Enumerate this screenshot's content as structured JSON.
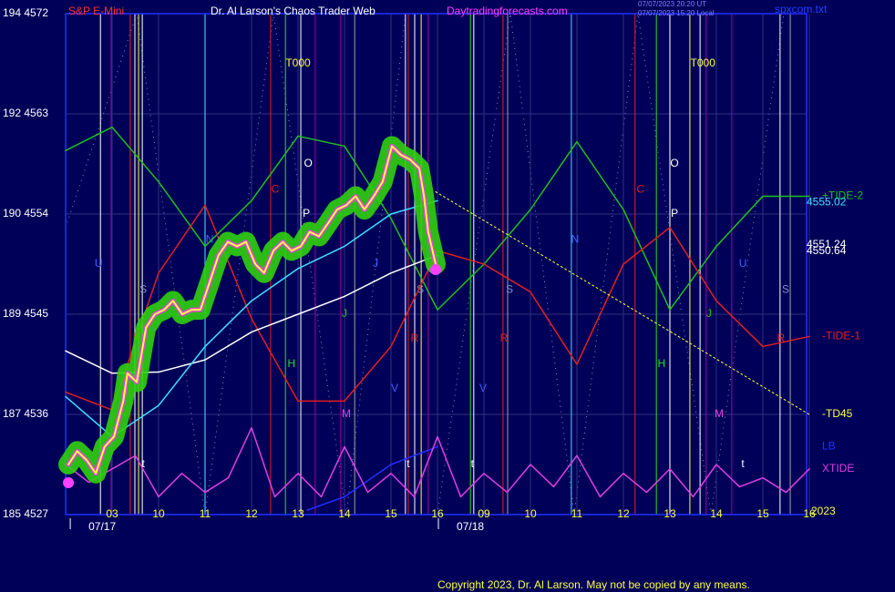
{
  "chart_data": {
    "type": "line",
    "symbol": "S&P E-Mini",
    "title": "Dr. Al Larson's Chaos Trader Web",
    "site": "Daytradingforecasts.com",
    "timestamps": [
      "07/07/2023 20:20 UT",
      "07/07/2023 15:20 Local"
    ],
    "file": "spxcom.txt",
    "copyright": "Copyright 2023, Dr. Al Larson. May not be copied by any means.",
    "year": "2023",
    "grid": true,
    "ylim": [
      4527,
      4572
    ],
    "yticks": [
      {
        "value": 4572,
        "label": "194 4572"
      },
      {
        "value": 4563,
        "label": "192 4563"
      },
      {
        "value": 4554,
        "label": "190 4554"
      },
      {
        "value": 4545,
        "label": "189 4545"
      },
      {
        "value": 4536,
        "label": "187 4536"
      },
      {
        "value": 4527,
        "label": "185 4527"
      }
    ],
    "xlim": [
      0,
      16
    ],
    "xticks": [
      {
        "value": 1,
        "label": "03"
      },
      {
        "value": 2,
        "label": "10"
      },
      {
        "value": 3,
        "label": "11"
      },
      {
        "value": 4,
        "label": "12"
      },
      {
        "value": 5,
        "label": "13"
      },
      {
        "value": 6,
        "label": "14"
      },
      {
        "value": 7,
        "label": "15"
      },
      {
        "value": 8,
        "label": "16"
      },
      {
        "value": 9,
        "label": "09"
      },
      {
        "value": 10,
        "label": "10"
      },
      {
        "value": 11,
        "label": "11"
      },
      {
        "value": 12,
        "label": "12"
      },
      {
        "value": 13,
        "label": "13"
      },
      {
        "value": 14,
        "label": "14"
      },
      {
        "value": 15,
        "label": "15"
      },
      {
        "value": 16,
        "label": "16"
      }
    ],
    "date_ticks": [
      {
        "value": 0.1,
        "label": "07/17"
      },
      {
        "value": 8.02,
        "label": "07/18"
      }
    ],
    "price_labels": [
      {
        "value": 4555.02,
        "color": "#40e0ff"
      },
      {
        "value": 4551.24,
        "color": "#ffffff"
      },
      {
        "value": 4550.64,
        "color": "#ffffff"
      }
    ],
    "series": [
      {
        "name": "+TIDE-2",
        "color": "#20c020",
        "x": [
          0,
          1,
          2,
          3,
          4,
          5,
          6,
          7,
          8,
          9,
          10,
          11,
          12,
          13,
          14,
          15,
          16
        ],
        "values": [
          4559.7,
          4561.8,
          4556.9,
          4551.1,
          4555.2,
          4561.0,
          4560.1,
          4553.6,
          4545.4,
          4549.5,
          4554.4,
          4560.5,
          4554.4,
          4545.4,
          4551.1,
          4555.6,
          4555.6
        ]
      },
      {
        "name": "-TIDE-1",
        "color": "#e02020",
        "x": [
          0,
          1,
          2,
          3,
          4,
          5,
          6,
          7,
          8,
          9,
          10,
          11,
          12,
          13,
          14,
          15,
          16
        ],
        "values": [
          4538.0,
          4536.4,
          4548.7,
          4554.8,
          4544.6,
          4537.2,
          4537.2,
          4542.1,
          4550.7,
          4549.5,
          4547.0,
          4540.5,
          4549.5,
          4552.8,
          4546.2,
          4542.1,
          4543.0
        ]
      },
      {
        "name": "-TD45",
        "color": "#ffff40",
        "style": "dotted",
        "x": [
          7.96,
          16
        ],
        "values": [
          4556.0,
          4536.0
        ]
      },
      {
        "name": "LB",
        "color": "#2030ff",
        "x": [
          5.2,
          6,
          7,
          8
        ],
        "values": [
          4527.4,
          4528.6,
          4531.5,
          4533.1
        ]
      },
      {
        "name": "XTIDE",
        "color": "#e040e0",
        "x": [
          0,
          0.5,
          1,
          1.5,
          2,
          2.5,
          3,
          3.5,
          4,
          4.5,
          5,
          5.5,
          6,
          6.5,
          7,
          7.5,
          8,
          8.5,
          9,
          9.5,
          10,
          10.5,
          11,
          11.5,
          12,
          12.5,
          13,
          13.5,
          14,
          14.5,
          15,
          15.5,
          16
        ],
        "values": [
          4531.5,
          4529.9,
          4531.1,
          4532.3,
          4528.6,
          4530.7,
          4529.0,
          4530.3,
          4534.8,
          4528.6,
          4530.7,
          4528.6,
          4533.1,
          4529.0,
          4530.7,
          4528.6,
          4534.0,
          4528.6,
          4530.7,
          4529.0,
          4531.5,
          4529.5,
          4532.3,
          4528.6,
          4530.7,
          4529.0,
          4531.1,
          4528.6,
          4531.5,
          4529.5,
          4530.3,
          4529.0,
          4531.1
        ]
      },
      {
        "color": "#ffffff",
        "x": [
          0,
          1,
          2,
          3,
          4,
          5,
          6,
          7,
          8
        ],
        "values": [
          4541.7,
          4539.7,
          4539.8,
          4540.9,
          4543.4,
          4545.0,
          4546.6,
          4548.7,
          4550.3
        ]
      },
      {
        "color": "#40e0ff",
        "x": [
          0,
          1,
          2,
          3,
          4,
          5,
          6,
          7,
          8
        ],
        "values": [
          4537.6,
          4534.0,
          4536.8,
          4542.1,
          4546.2,
          4549.1,
          4551.1,
          4554.0,
          4555.2
        ]
      },
      {
        "color": "#ffff40",
        "style": "glow",
        "x": [
          0.06,
          0.25,
          0.45,
          0.65,
          0.84,
          1.04,
          1.24,
          1.33,
          1.53,
          1.73,
          1.92,
          2.12,
          2.31,
          2.51,
          2.71,
          2.9,
          3.1,
          3.29,
          3.49,
          3.69,
          3.88,
          4.08,
          4.27,
          4.47,
          4.67,
          4.86,
          5.06,
          5.25,
          5.45,
          5.65,
          5.84,
          6.04,
          6.24,
          6.43,
          6.63,
          6.82,
          7.02,
          7.22,
          7.41,
          7.61,
          7.71,
          7.8,
          7.96
        ],
        "values": [
          4531.5,
          4532.7,
          4531.9,
          4530.7,
          4533.1,
          4534.0,
          4537.2,
          4539.7,
          4538.9,
          4543.8,
          4545.0,
          4545.4,
          4546.2,
          4545.0,
          4545.4,
          4545.4,
          4547.9,
          4550.3,
          4551.5,
          4551.1,
          4551.5,
          4549.5,
          4548.7,
          4550.7,
          4551.5,
          4550.7,
          4551.1,
          4552.4,
          4552.0,
          4553.2,
          4554.4,
          4554.8,
          4555.6,
          4554.4,
          4555.6,
          4556.9,
          4560.1,
          4559.3,
          4558.9,
          4558.1,
          4555.6,
          4552.4,
          4549.5
        ]
      }
    ],
    "vlines": [
      {
        "x": 0.75,
        "color": "#ffffff"
      },
      {
        "x": 0.98,
        "color": "#a000a0"
      },
      {
        "x": 1.39,
        "color": "#e02020"
      },
      {
        "x": 1.49,
        "color": "#ffffff"
      },
      {
        "x": 1.57,
        "color": "#ffff40"
      },
      {
        "x": 1.65,
        "color": "#ffffff"
      },
      {
        "x": 3.0,
        "color": "#40e0ff"
      },
      {
        "x": 4.41,
        "color": "#e02020"
      },
      {
        "x": 4.73,
        "color": "#20e020"
      },
      {
        "x": 5.06,
        "color": "#ffffff"
      },
      {
        "x": 5.37,
        "color": "#a000a0"
      },
      {
        "x": 5.92,
        "color": "#a000a0"
      },
      {
        "x": 6.22,
        "color": "#a0a0a0"
      },
      {
        "x": 7.31,
        "color": "#ffffff"
      },
      {
        "x": 7.37,
        "color": "#e02020"
      },
      {
        "x": 7.51,
        "color": "#ffffff"
      },
      {
        "x": 7.65,
        "color": "#ffff40"
      },
      {
        "x": 7.8,
        "color": "#a000a0"
      },
      {
        "x": 8.71,
        "color": "#20e020"
      },
      {
        "x": 8.78,
        "color": "#ffffff"
      },
      {
        "x": 9.41,
        "color": "#e02020"
      },
      {
        "x": 9.51,
        "color": "#a0a0a0"
      },
      {
        "x": 10.88,
        "color": "#40e0ff"
      },
      {
        "x": 12.25,
        "color": "#e02020"
      },
      {
        "x": 12.71,
        "color": "#20e020"
      },
      {
        "x": 13.0,
        "color": "#ffffff"
      },
      {
        "x": 13.43,
        "color": "#ffff40"
      },
      {
        "x": 13.65,
        "color": "#ffffff"
      },
      {
        "x": 13.78,
        "color": "#a000a0"
      },
      {
        "x": 14.33,
        "color": "#a000a0"
      },
      {
        "x": 15.37,
        "color": "#ffffff"
      },
      {
        "x": 15.59,
        "color": "#a0a0a0"
      }
    ],
    "annotations": [
      {
        "x": 5.0,
        "y": 4567.5,
        "label": "T000",
        "color": "#ffff40"
      },
      {
        "x": 13.71,
        "y": 4567.5,
        "label": "T000",
        "color": "#ffff40"
      },
      {
        "x": 5.22,
        "y": 4558.5,
        "label": "O",
        "color": "#ffffff"
      },
      {
        "x": 13.1,
        "y": 4558.5,
        "label": "O",
        "color": "#ffffff"
      },
      {
        "x": 5.18,
        "y": 4554.0,
        "label": "P",
        "color": "#ffffff"
      },
      {
        "x": 13.1,
        "y": 4554.0,
        "label": "P",
        "color": "#ffffff"
      },
      {
        "x": 4.51,
        "y": 4556.2,
        "label": "C",
        "color": "#e02020"
      },
      {
        "x": 12.37,
        "y": 4556.2,
        "label": "C",
        "color": "#e02020"
      },
      {
        "x": 3.1,
        "y": 4551.7,
        "label": "N",
        "color": "#4060ff"
      },
      {
        "x": 10.96,
        "y": 4551.7,
        "label": "N",
        "color": "#4060ff"
      },
      {
        "x": 0.71,
        "y": 4549.5,
        "label": "U",
        "color": "#4060ff"
      },
      {
        "x": 14.57,
        "y": 4549.5,
        "label": "U",
        "color": "#4060ff"
      },
      {
        "x": 6.67,
        "y": 4549.5,
        "label": "J",
        "color": "#4060ff"
      },
      {
        "x": 1.67,
        "y": 4547.2,
        "label": "S",
        "color": "#8090c0"
      },
      {
        "x": 7.63,
        "y": 4547.2,
        "label": "S",
        "color": "#8090c0"
      },
      {
        "x": 9.55,
        "y": 4547.2,
        "label": "S",
        "color": "#8090c0"
      },
      {
        "x": 15.49,
        "y": 4547.2,
        "label": "S",
        "color": "#8090c0"
      },
      {
        "x": 6.0,
        "y": 4545.0,
        "label": "J",
        "color": "#20c020"
      },
      {
        "x": 13.84,
        "y": 4545.0,
        "label": "J",
        "color": "#20c020"
      },
      {
        "x": 1.53,
        "y": 4542.8,
        "label": "R",
        "color": "#e02020"
      },
      {
        "x": 7.51,
        "y": 4542.8,
        "label": "R",
        "color": "#e02020"
      },
      {
        "x": 9.43,
        "y": 4542.8,
        "label": "R",
        "color": "#e02020"
      },
      {
        "x": 15.39,
        "y": 4542.8,
        "label": "R",
        "color": "#e02020"
      },
      {
        "x": 4.86,
        "y": 4540.5,
        "label": "H",
        "color": "#20e020"
      },
      {
        "x": 12.82,
        "y": 4540.5,
        "label": "H",
        "color": "#20e020"
      },
      {
        "x": 7.08,
        "y": 4538.3,
        "label": "V",
        "color": "#4060ff"
      },
      {
        "x": 8.98,
        "y": 4538.3,
        "label": "V",
        "color": "#4060ff"
      },
      {
        "x": 6.04,
        "y": 4536.0,
        "label": "M",
        "color": "#e040e0"
      },
      {
        "x": 14.06,
        "y": 4536.0,
        "label": "M",
        "color": "#e040e0"
      },
      {
        "x": 1.67,
        "y": 4531.5,
        "label": "t",
        "color": "#ffffff"
      },
      {
        "x": 7.37,
        "y": 4531.5,
        "label": "t",
        "color": "#ffffff"
      },
      {
        "x": 8.75,
        "y": 4531.5,
        "label": "t",
        "color": "#ffffff"
      },
      {
        "x": 14.57,
        "y": 4531.5,
        "label": "t",
        "color": "#ffffff"
      }
    ]
  }
}
